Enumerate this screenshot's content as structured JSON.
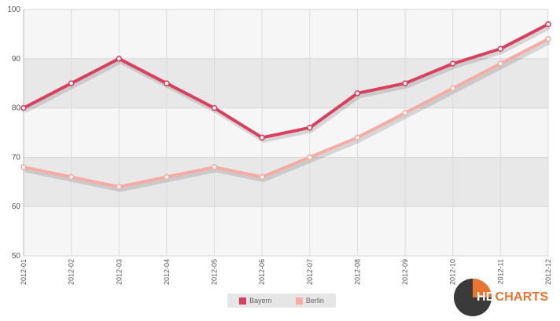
{
  "chart_data": {
    "type": "line",
    "categories": [
      "2012-01",
      "2012-02",
      "2012-03",
      "2012-04",
      "2012-05",
      "2012-06",
      "2012-07",
      "2012-08",
      "2012-09",
      "2012-10",
      "2012-11",
      "2012-12"
    ],
    "series": [
      {
        "name": "Bayern",
        "color": "#d9405e",
        "values": [
          80,
          85,
          90,
          85,
          80,
          74,
          76,
          83,
          85,
          89,
          92,
          97
        ]
      },
      {
        "name": "Berlin",
        "color": "#f4aca4",
        "values": [
          68,
          66,
          64,
          66,
          68,
          66,
          70,
          74,
          79,
          84,
          89,
          94
        ]
      }
    ],
    "ylim": [
      50,
      100
    ],
    "yticks": [
      50,
      60,
      70,
      80,
      90,
      100
    ],
    "legend": "bottom-center",
    "grid": true
  },
  "logo": {
    "hd": "HD",
    "charts": "CHARTS"
  }
}
